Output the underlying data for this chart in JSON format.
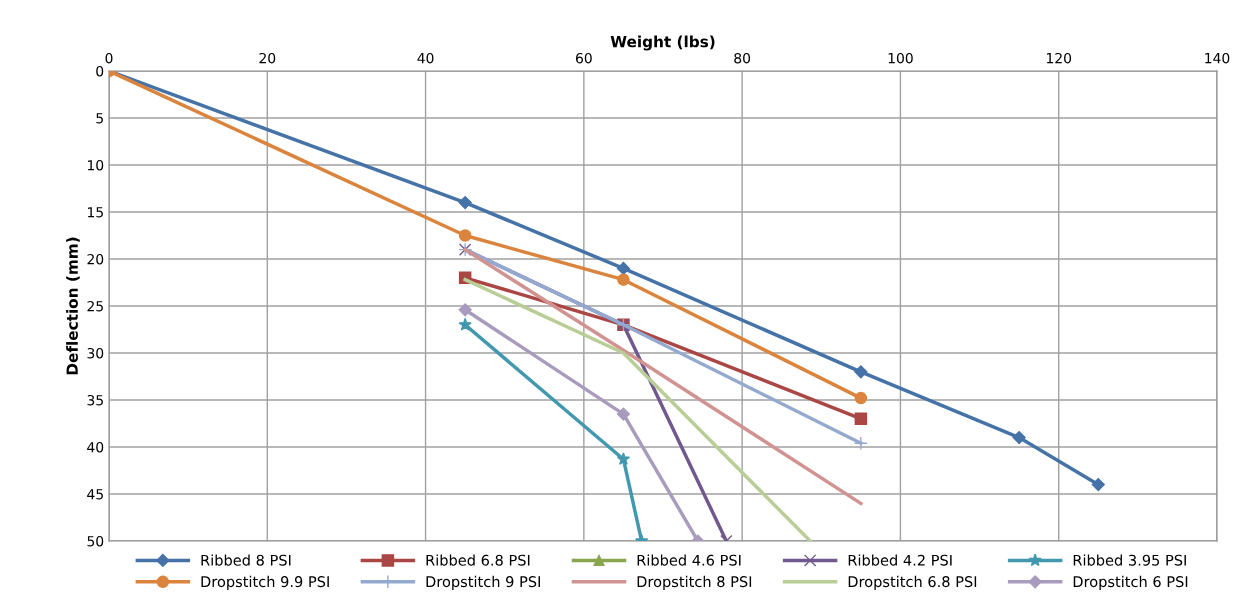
{
  "chart_data": {
    "type": "line",
    "xlabel": "Weight (lbs)",
    "ylabel": "Deflection (mm)",
    "xlim": [
      0,
      140
    ],
    "xticks": [
      0,
      20,
      40,
      60,
      80,
      100,
      120,
      140
    ],
    "ylim": [
      50,
      0
    ],
    "yticks": [
      0,
      5,
      10,
      15,
      20,
      25,
      30,
      35,
      40,
      45,
      50
    ],
    "grid": true,
    "legend": "bottom",
    "line_style": "solid",
    "series": [
      {
        "name": "Ribbed 8 PSI",
        "color": "#4572a7",
        "marker": "diamond",
        "x": [
          0,
          45,
          65,
          95,
          115,
          125
        ],
        "values": [
          0,
          14,
          21,
          32,
          39,
          44
        ]
      },
      {
        "name": "Ribbed 6.8 PSI",
        "color": "#aa4643",
        "marker": "square",
        "x": [
          45,
          65,
          95
        ],
        "values": [
          22,
          27,
          37
        ]
      },
      {
        "name": "Ribbed 4.6 PSI",
        "color": "#89a54e",
        "marker": "triangle"
      },
      {
        "name": "Ribbed 4.2 PSI",
        "color": "#71588f",
        "marker": "cross",
        "x": [
          45,
          65,
          78
        ],
        "values": [
          19,
          27,
          50
        ]
      },
      {
        "name": "Ribbed 3.95 PSI",
        "color": "#4198af",
        "marker": "star",
        "x": [
          45,
          65,
          67.3
        ],
        "values": [
          27,
          41.3,
          50
        ]
      },
      {
        "name": "Dropstitch 9.9 PSI",
        "color": "#db843d",
        "marker": "circle",
        "x": [
          0,
          45,
          65,
          95
        ],
        "values": [
          0,
          17.5,
          22.2,
          34.8
        ]
      },
      {
        "name": "Dropstitch 9 PSI",
        "color": "#93a9cf",
        "marker": "plus",
        "x": [
          45,
          65,
          95
        ],
        "values": [
          19,
          27,
          39.6
        ]
      },
      {
        "name": "Dropstitch 8 PSI",
        "color": "#d19392",
        "marker": "none",
        "x": [
          45,
          65,
          95
        ],
        "values": [
          19,
          29.7,
          46
        ]
      },
      {
        "name": "Dropstitch 6.8 PSI",
        "color": "#b9cd96",
        "marker": "none",
        "x": [
          45,
          65,
          88.6
        ],
        "values": [
          22.2,
          30,
          50
        ]
      },
      {
        "name": "Dropstitch 6 PSI",
        "color": "#a99bbd",
        "marker": "diamond",
        "x": [
          45,
          65,
          74.4
        ],
        "values": [
          25.4,
          36.5,
          50
        ]
      }
    ]
  }
}
